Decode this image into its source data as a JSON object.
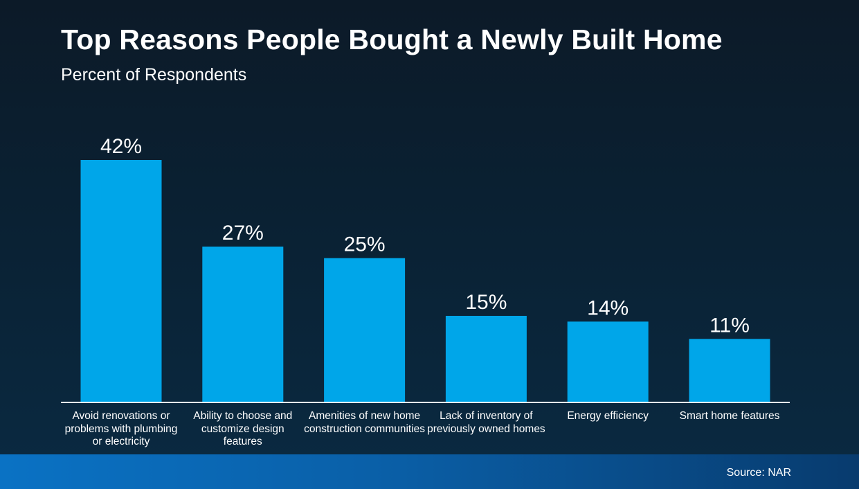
{
  "chart_data": {
    "type": "bar",
    "title": "Top Reasons People Bought a Newly Built Home",
    "subtitle": "Percent of Respondents",
    "categories": [
      "Avoid renovations or problems with plumbing or electricity",
      "Ability to choose and customize design features",
      "Amenities of new home construction communities",
      "Lack of inventory of previously owned homes",
      "Energy efficiency",
      "Smart home features"
    ],
    "values": [
      42,
      27,
      25,
      15,
      14,
      11
    ],
    "value_labels": [
      "42%",
      "27%",
      "25%",
      "15%",
      "14%",
      "11%"
    ],
    "ylim": [
      0,
      42
    ],
    "grid": false,
    "bar_color": "#00a6e9",
    "axis_color": "#ffffff"
  },
  "source": "Source: NAR"
}
